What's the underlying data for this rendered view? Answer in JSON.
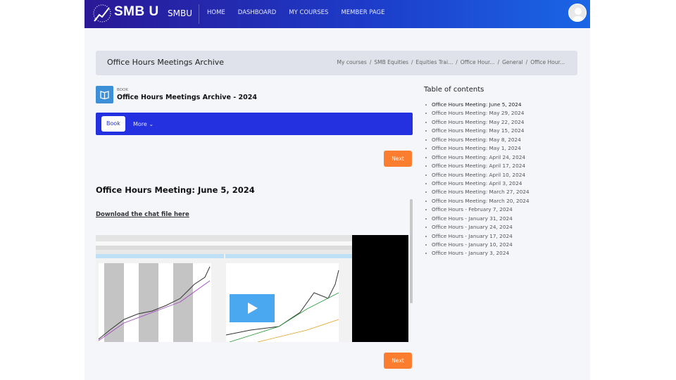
{
  "nav": {
    "brand": "SMB U",
    "site_name": "SMBU",
    "links": [
      "HOME",
      "DASHBOARD",
      "MY COURSES",
      "MEMBER PAGE"
    ]
  },
  "header": {
    "title": "Office Hours Meetings Archive",
    "breadcrumb": [
      "My courses",
      "SMB Equities",
      "Equities Trai...",
      "Office Hour...",
      "General",
      "Office Hour..."
    ]
  },
  "activity": {
    "type_label": "BOOK",
    "title": "Office Hours Meetings Archive - 2024"
  },
  "secondary_nav": {
    "book_label": "Book",
    "more_label": "More ⌄"
  },
  "content": {
    "next_label": "Next",
    "chapter_title": "Office Hours Meeting: June 5, 2024",
    "download_link": "Download the chat file here"
  },
  "colors": {
    "accent": "#2431e0",
    "next": "#fb7d2f",
    "play": "#4aa8f0"
  },
  "toc": {
    "title": "Table of contents",
    "items": [
      "Office Hours Meeting: June 5, 2024",
      "Office Hours Meeting: May 29, 2024",
      "Office Hours Meeting: May 22, 2024",
      "Office Hours Meeting: May 15, 2024",
      "Office Hours Meeting: May 8, 2024",
      "Office Hours Meeting: May 1, 2024",
      "Office Hours Meeting: April 24, 2024",
      "Office Hours Meeting: April 17, 2024",
      "Office Hours Meeting: April 10, 2024",
      "Office Hours Meeting: April 3, 2024",
      "Office Hours Meeting: March 27, 2024",
      "Office Hours Meeting: March 20, 2024",
      "Office Hours - February 7, 2024",
      "Office Hours - January 31, 2024",
      "Office Hours - January 24, 2024",
      "Office Hours - January 17, 2024",
      "Office Hours - January 10, 2024",
      "Office Hours - January 3, 2024"
    ]
  }
}
